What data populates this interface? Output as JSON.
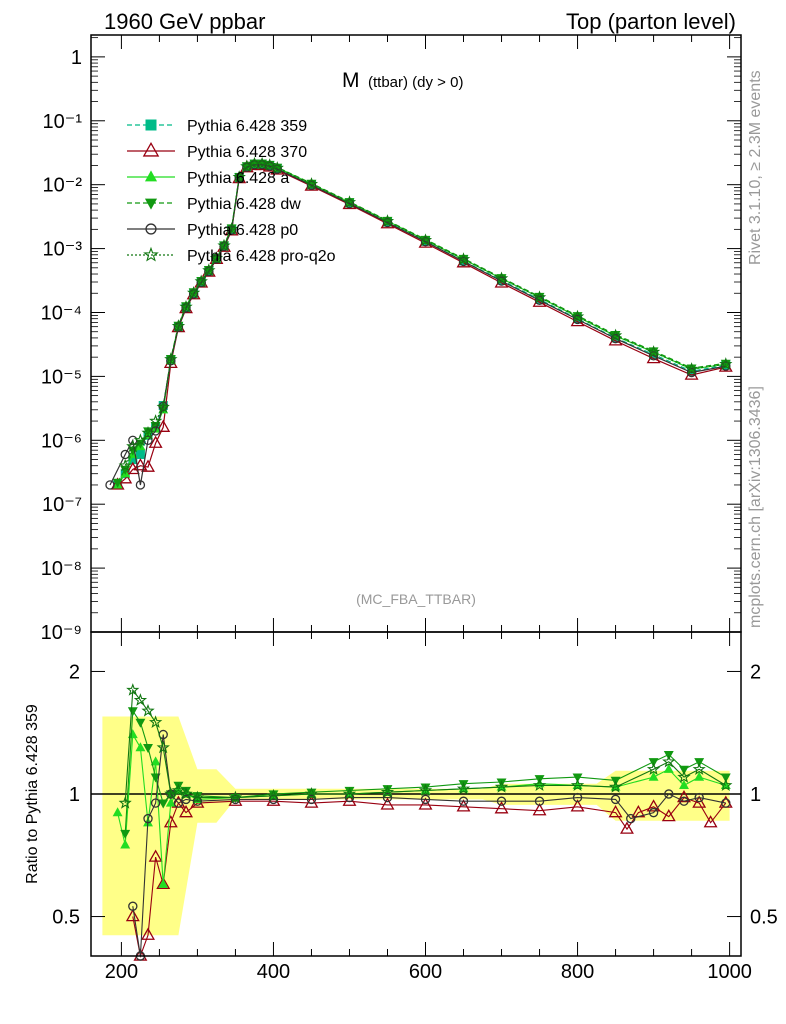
{
  "header": {
    "left": "1960 GeV ppbar",
    "right": "Top (parton level)"
  },
  "side_text": {
    "rivet": "Rivet 3.1.10, ≥ 2.3M events",
    "mcplots": "mcplots.cern.ch [arXiv:1306.3436]"
  },
  "chart_data": [
    {
      "type": "line",
      "title": "M",
      "title_sub": "(ttbar) (dy > 0)",
      "watermark": "(MC_FBA_TTBAR)",
      "y_scale": "log",
      "xlim": [
        160,
        1015
      ],
      "ylim": [
        1e-09,
        2.2
      ],
      "y_tick_labels": [
        "10⁻⁹",
        "10⁻⁸",
        "10⁻⁷",
        "10⁻⁶",
        "10⁻⁵",
        "10⁻⁴",
        "10⁻³",
        "10⁻²",
        "10⁻¹",
        "1"
      ],
      "legend_position": "top-left",
      "series": [
        {
          "name": "Pythia 6.428 359",
          "color": "#00bb88",
          "marker": "square",
          "dash": "dashed",
          "x": [
            185,
            195,
            205,
            215,
            225,
            235,
            245,
            255,
            265,
            275,
            285,
            295,
            305,
            315,
            325,
            335,
            345,
            355,
            365,
            375,
            385,
            395,
            405,
            450,
            500,
            550,
            600,
            650,
            700,
            750,
            800,
            850,
            900,
            950,
            995
          ],
          "y": [
            null,
            2e-07,
            3e-07,
            5e-07,
            6e-07,
            1.2e-06,
            1.6e-06,
            3.5e-06,
            1.8e-05,
            6e-05,
            0.00012,
            0.0002,
            0.0003,
            0.00045,
            0.0007,
            0.0011,
            0.002,
            0.013,
            0.019,
            0.021,
            0.021,
            0.02,
            0.018,
            0.01,
            0.0052,
            0.0026,
            0.0013,
            0.00064,
            0.00032,
            0.00016,
            8e-05,
            4e-05,
            2.2e-05,
            1.2e-05,
            1.5e-05
          ]
        },
        {
          "name": "Pythia 6.428 370",
          "color": "#990011",
          "marker": "triangle-open",
          "dash": "solid",
          "x": [
            195,
            205,
            215,
            225,
            235,
            245,
            255,
            265,
            275,
            285,
            295,
            305,
            315,
            325,
            335,
            345,
            355,
            365,
            375,
            385,
            395,
            405,
            450,
            500,
            550,
            600,
            650,
            700,
            750,
            800,
            850,
            900,
            950,
            995
          ],
          "y": [
            2e-07,
            2.5e-07,
            3.5e-07,
            4e-07,
            3.8e-07,
            9e-07,
            1.6e-06,
            1.6e-05,
            5.8e-05,
            0.000115,
            0.00019,
            0.00029,
            0.00043,
            0.00068,
            0.00105,
            0.0019,
            0.0125,
            0.0185,
            0.02,
            0.02,
            0.019,
            0.017,
            0.0095,
            0.0049,
            0.00245,
            0.00122,
            0.0006,
            0.00029,
            0.000145,
            7.2e-05,
            3.6e-05,
            1.9e-05,
            1.05e-05,
            1.4e-05
          ]
        },
        {
          "name": "Pythia 6.428 a",
          "color": "#22dd22",
          "marker": "triangle-filled",
          "dash": "solid",
          "x": [
            195,
            205,
            215,
            225,
            235,
            245,
            255,
            265,
            275,
            285,
            295,
            305,
            315,
            325,
            335,
            345,
            355,
            365,
            375,
            385,
            395,
            405,
            450,
            500,
            550,
            600,
            650,
            700,
            750,
            800,
            850,
            900,
            950,
            995
          ],
          "y": [
            2e-07,
            3e-07,
            6e-07,
            8e-07,
            1.2e-06,
            1.5e-06,
            3e-06,
            1.8e-05,
            6.2e-05,
            0.000125,
            0.000205,
            0.00031,
            0.00046,
            0.00071,
            0.00112,
            0.00205,
            0.0132,
            0.0195,
            0.0215,
            0.0215,
            0.0205,
            0.0185,
            0.0103,
            0.0053,
            0.0027,
            0.00136,
            0.00068,
            0.00034,
            0.000172,
            8.6e-05,
            4.3e-05,
            2.4e-05,
            1.3e-05,
            1.55e-05
          ]
        },
        {
          "name": "Pythia 6.428 dw",
          "color": "#119911",
          "marker": "triangle-down-filled",
          "dash": "dashed",
          "x": [
            195,
            205,
            215,
            225,
            235,
            245,
            255,
            265,
            275,
            285,
            295,
            305,
            315,
            325,
            335,
            345,
            355,
            365,
            375,
            385,
            395,
            405,
            450,
            500,
            550,
            600,
            650,
            700,
            750,
            800,
            850,
            900,
            950,
            995
          ],
          "y": [
            2.2e-07,
            3.5e-07,
            7e-07,
            9e-07,
            1.4e-06,
            1.7e-06,
            3.2e-06,
            1.9e-05,
            6.3e-05,
            0.000127,
            0.00021,
            0.000315,
            0.00047,
            0.00072,
            0.00114,
            0.0021,
            0.0134,
            0.0197,
            0.0217,
            0.0217,
            0.0207,
            0.0187,
            0.0105,
            0.0054,
            0.00275,
            0.00139,
            0.0007,
            0.00035,
            0.000178,
            8.9e-05,
            4.5e-05,
            2.5e-05,
            1.35e-05,
            1.6e-05
          ]
        },
        {
          "name": "Pythia 6.428 p0",
          "color": "#333333",
          "marker": "circle-open",
          "dash": "solid",
          "x": [
            185,
            205,
            215,
            225,
            235,
            245,
            255,
            265,
            275,
            285,
            295,
            305,
            315,
            325,
            335,
            345,
            355,
            365,
            375,
            385,
            395,
            405,
            450,
            500,
            550,
            600,
            650,
            700,
            750,
            800,
            850,
            900,
            950,
            995
          ],
          "y": [
            2e-07,
            6e-07,
            1e-06,
            2e-07,
            1e-06,
            1.4e-06,
            3.4e-06,
            1.75e-05,
            5.9e-05,
            0.000118,
            0.000195,
            0.000295,
            0.00044,
            0.00069,
            0.00108,
            0.00195,
            0.0128,
            0.0188,
            0.0205,
            0.0205,
            0.0195,
            0.0175,
            0.0098,
            0.00505,
            0.00255,
            0.00128,
            0.00063,
            0.00031,
            0.000155,
            7.8e-05,
            3.9e-05,
            2.1e-05,
            1.15e-05,
            1.45e-05
          ]
        },
        {
          "name": "Pythia 6.428 pro-q2o",
          "color": "#117711",
          "marker": "star",
          "dash": "dotted",
          "x": [
            205,
            215,
            225,
            235,
            245,
            255,
            265,
            275,
            285,
            295,
            305,
            315,
            325,
            335,
            345,
            355,
            365,
            375,
            385,
            395,
            405,
            450,
            500,
            550,
            600,
            650,
            700,
            750,
            800,
            850,
            900,
            950,
            995
          ],
          "y": [
            4e-07,
            8e-07,
            1e-06,
            1.3e-06,
            2e-06,
            3.3e-06,
            1.85e-05,
            6.1e-05,
            0.000122,
            0.000202,
            0.000305,
            0.000455,
            0.000705,
            0.00111,
            0.00202,
            0.0131,
            0.0193,
            0.0212,
            0.0212,
            0.0202,
            0.0182,
            0.0102,
            0.0053,
            0.00268,
            0.00135,
            0.00068,
            0.00034,
            0.000172,
            8.6e-05,
            4.35e-05,
            2.4e-05,
            1.3e-05,
            1.55e-05
          ]
        }
      ]
    },
    {
      "type": "line",
      "ylabel": "Ratio to Pythia 6.428 359",
      "y_scale": "log",
      "xlim": [
        160,
        1015
      ],
      "ylim": [
        0.4,
        2.5
      ],
      "x_ticks": [
        200,
        400,
        600,
        800,
        1000
      ],
      "y_ticks": [
        0.5,
        1,
        2
      ],
      "band_color": "#ffff88",
      "reference_line": 1,
      "series": [
        {
          "name": "Pythia 6.428 370",
          "color": "#990011",
          "marker": "triangle-open",
          "x": [
            215,
            225,
            235,
            245,
            255,
            265,
            275,
            285,
            300,
            350,
            400,
            450,
            500,
            550,
            600,
            650,
            700,
            750,
            800,
            850,
            865,
            880,
            900,
            920,
            940,
            960,
            975,
            995
          ],
          "y": [
            0.5,
            0.4,
            0.45,
            0.7,
            0.6,
            0.85,
            0.95,
            0.9,
            0.95,
            0.96,
            0.96,
            0.95,
            0.96,
            0.94,
            0.94,
            0.93,
            0.92,
            0.91,
            0.93,
            0.9,
            0.82,
            0.9,
            0.93,
            0.88,
            0.98,
            0.95,
            0.85,
            0.95
          ]
        },
        {
          "name": "Pythia 6.428 a",
          "color": "#22dd22",
          "marker": "triangle-filled",
          "x": [
            195,
            205,
            215,
            225,
            235,
            245,
            255,
            265,
            275,
            285,
            300,
            350,
            400,
            450,
            500,
            550,
            600,
            650,
            700,
            750,
            800,
            850,
            900,
            920,
            940,
            960,
            995
          ],
          "y": [
            0.9,
            0.75,
            1.4,
            1.3,
            0.85,
            1.2,
            0.6,
            0.95,
            1.02,
            1.0,
            0.97,
            0.98,
            0.99,
            1.0,
            1.0,
            1.01,
            1.02,
            1.03,
            1.04,
            1.06,
            1.05,
            1.04,
            1.1,
            1.15,
            1.05,
            1.1,
            1.05
          ]
        },
        {
          "name": "Pythia 6.428 dw",
          "color": "#119911",
          "marker": "triangle-down-filled",
          "x": [
            205,
            215,
            225,
            235,
            245,
            255,
            265,
            275,
            285,
            300,
            350,
            400,
            450,
            500,
            550,
            600,
            650,
            700,
            750,
            800,
            850,
            900,
            920,
            940,
            960,
            995
          ],
          "y": [
            0.8,
            1.6,
            1.5,
            1.3,
            1.1,
            0.95,
            1.0,
            1.05,
            1.02,
            0.99,
            0.98,
            1.0,
            1.01,
            1.02,
            1.03,
            1.04,
            1.06,
            1.07,
            1.09,
            1.1,
            1.08,
            1.2,
            1.25,
            1.15,
            1.2,
            1.1
          ]
        },
        {
          "name": "Pythia 6.428 p0",
          "color": "#333333",
          "marker": "circle-open",
          "x": [
            215,
            225,
            235,
            245,
            255,
            265,
            275,
            285,
            300,
            350,
            400,
            450,
            500,
            550,
            600,
            650,
            700,
            750,
            800,
            850,
            870,
            900,
            920,
            940,
            960,
            995
          ],
          "y": [
            0.53,
            0.4,
            0.87,
            0.95,
            1.4,
            1.0,
            0.95,
            0.97,
            0.96,
            0.97,
            0.97,
            0.97,
            0.98,
            0.98,
            0.97,
            0.96,
            0.96,
            0.96,
            0.98,
            0.97,
            0.87,
            0.9,
            1.0,
            0.96,
            0.98,
            0.95
          ]
        },
        {
          "name": "Pythia 6.428 pro-q2o",
          "color": "#117711",
          "marker": "star",
          "x": [
            205,
            215,
            225,
            235,
            245,
            255,
            265,
            275,
            285,
            300,
            350,
            400,
            450,
            500,
            550,
            600,
            650,
            700,
            750,
            800,
            850,
            900,
            920,
            940,
            960,
            995
          ],
          "y": [
            0.95,
            1.8,
            1.7,
            1.6,
            1.5,
            1.3,
            1.0,
            1.02,
            1.0,
            0.98,
            0.98,
            0.99,
            1.0,
            1.0,
            1.01,
            1.02,
            1.03,
            1.04,
            1.05,
            1.05,
            1.04,
            1.15,
            1.2,
            1.1,
            1.15,
            1.05
          ]
        }
      ]
    }
  ]
}
